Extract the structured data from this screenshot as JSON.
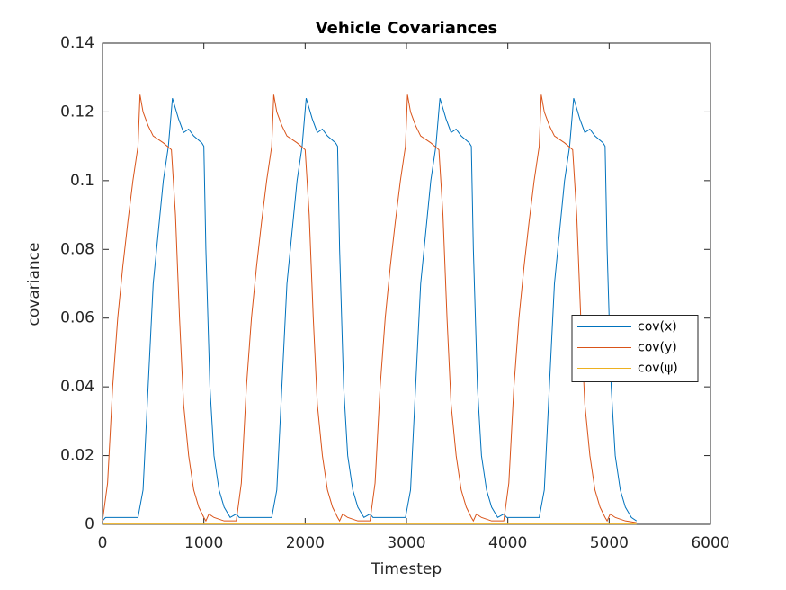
{
  "chart_data": {
    "type": "line",
    "title": "Vehicle Covariances",
    "x_label": "Timestep",
    "y_label": "covariance",
    "xlim": [
      0,
      6000
    ],
    "xticks": [
      0,
      1000,
      2000,
      3000,
      4000,
      5000,
      6000
    ],
    "ylim": [
      0,
      0.14
    ],
    "yticks": [
      0,
      0.02,
      0.04,
      0.06,
      0.08,
      0.1,
      0.12,
      0.14
    ],
    "grid": false,
    "legend": "east",
    "series": [
      {
        "name": "cov(x)",
        "color": "#0072bd",
        "x": [
          0,
          30,
          350,
          400,
          450,
          500,
          550,
          600,
          650,
          690,
          750,
          800,
          850,
          900,
          980,
          1000,
          1020,
          1060,
          1100,
          1150,
          1200,
          1260,
          1320,
          1350,
          1670,
          1720,
          1770,
          1820,
          1870,
          1920,
          1970,
          2010,
          2070,
          2120,
          2170,
          2220,
          2300,
          2320,
          2340,
          2380,
          2420,
          2470,
          2520,
          2580,
          2640,
          2670,
          2990,
          3040,
          3090,
          3140,
          3190,
          3240,
          3290,
          3330,
          3390,
          3440,
          3490,
          3540,
          3620,
          3640,
          3660,
          3700,
          3740,
          3790,
          3840,
          3900,
          3960,
          3990,
          4310,
          4360,
          4410,
          4460,
          4510,
          4560,
          4610,
          4650,
          4710,
          4760,
          4810,
          4860,
          4940,
          4960,
          4980,
          5020,
          5060,
          5110,
          5160,
          5220,
          5270
        ],
        "values": [
          0.001,
          0.002,
          0.002,
          0.01,
          0.04,
          0.07,
          0.085,
          0.1,
          0.11,
          0.124,
          0.118,
          0.114,
          0.115,
          0.113,
          0.111,
          0.11,
          0.08,
          0.04,
          0.02,
          0.01,
          0.005,
          0.002,
          0.003,
          0.002,
          0.002,
          0.01,
          0.04,
          0.07,
          0.085,
          0.1,
          0.11,
          0.124,
          0.118,
          0.114,
          0.115,
          0.113,
          0.111,
          0.11,
          0.08,
          0.04,
          0.02,
          0.01,
          0.005,
          0.002,
          0.003,
          0.002,
          0.002,
          0.01,
          0.04,
          0.07,
          0.085,
          0.1,
          0.11,
          0.124,
          0.118,
          0.114,
          0.115,
          0.113,
          0.111,
          0.11,
          0.08,
          0.04,
          0.02,
          0.01,
          0.005,
          0.002,
          0.003,
          0.002,
          0.002,
          0.01,
          0.04,
          0.07,
          0.085,
          0.1,
          0.11,
          0.124,
          0.118,
          0.114,
          0.115,
          0.113,
          0.111,
          0.11,
          0.08,
          0.04,
          0.02,
          0.01,
          0.005,
          0.002,
          0.001
        ]
      },
      {
        "name": "cov(y)",
        "color": "#d95319",
        "x": [
          0,
          50,
          100,
          150,
          200,
          250,
          300,
          350,
          370,
          400,
          450,
          500,
          600,
          680,
          720,
          760,
          800,
          850,
          900,
          950,
          1000,
          1020,
          1050,
          1100,
          1200,
          1320,
          1370,
          1420,
          1470,
          1520,
          1570,
          1620,
          1670,
          1690,
          1720,
          1770,
          1820,
          1920,
          2000,
          2040,
          2080,
          2120,
          2170,
          2220,
          2270,
          2320,
          2340,
          2370,
          2420,
          2520,
          2640,
          2690,
          2740,
          2790,
          2840,
          2890,
          2940,
          2990,
          3010,
          3040,
          3090,
          3140,
          3240,
          3320,
          3360,
          3400,
          3440,
          3490,
          3540,
          3590,
          3640,
          3660,
          3690,
          3740,
          3840,
          3960,
          4010,
          4060,
          4110,
          4160,
          4210,
          4260,
          4310,
          4330,
          4360,
          4410,
          4460,
          4560,
          4640,
          4680,
          4720,
          4760,
          4810,
          4860,
          4910,
          4960,
          4980,
          5010,
          5060,
          5160,
          5270
        ],
        "values": [
          0.001,
          0.012,
          0.04,
          0.06,
          0.075,
          0.088,
          0.1,
          0.11,
          0.125,
          0.12,
          0.116,
          0.113,
          0.111,
          0.109,
          0.09,
          0.06,
          0.035,
          0.02,
          0.01,
          0.005,
          0.002,
          0.001,
          0.003,
          0.002,
          0.001,
          0.001,
          0.012,
          0.04,
          0.06,
          0.075,
          0.088,
          0.1,
          0.11,
          0.125,
          0.12,
          0.116,
          0.113,
          0.111,
          0.109,
          0.09,
          0.06,
          0.035,
          0.02,
          0.01,
          0.005,
          0.002,
          0.001,
          0.003,
          0.002,
          0.001,
          0.001,
          0.012,
          0.04,
          0.06,
          0.075,
          0.088,
          0.1,
          0.11,
          0.125,
          0.12,
          0.116,
          0.113,
          0.111,
          0.109,
          0.09,
          0.06,
          0.035,
          0.02,
          0.01,
          0.005,
          0.002,
          0.001,
          0.003,
          0.002,
          0.001,
          0.001,
          0.012,
          0.04,
          0.06,
          0.075,
          0.088,
          0.1,
          0.11,
          0.125,
          0.12,
          0.116,
          0.113,
          0.111,
          0.109,
          0.09,
          0.06,
          0.035,
          0.02,
          0.01,
          0.005,
          0.002,
          0.001,
          0.003,
          0.002,
          0.001,
          0.0005
        ]
      },
      {
        "name": "cov(ψ)",
        "color": "#edb120",
        "x": [
          0,
          5270
        ],
        "values": [
          0.0001,
          0.0001
        ]
      }
    ]
  }
}
